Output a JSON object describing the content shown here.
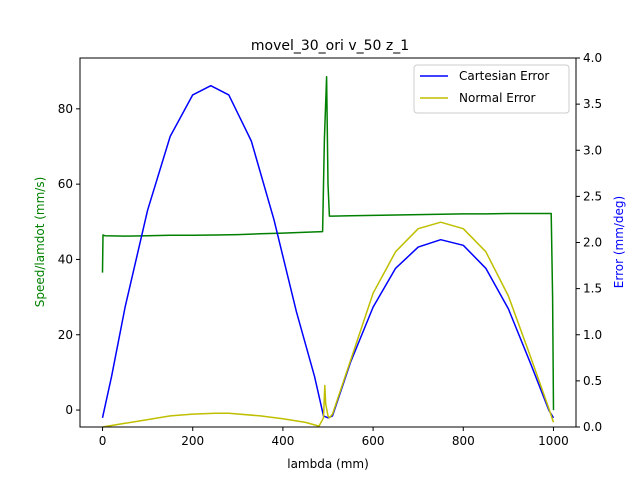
{
  "chart_data": {
    "type": "line",
    "title": "movel_30_ori v_50 z_1",
    "xlabel": "lambda (mm)",
    "ylabel_left": "Speed/lamdot (mm/s)",
    "ylabel_right": "Error (mm/deg)",
    "xlim": [
      -50,
      1050
    ],
    "ylim_left": [
      -4.5,
      93.5
    ],
    "ylim_right": [
      0.0,
      4.0
    ],
    "x_ticks": [
      0,
      200,
      400,
      600,
      800,
      1000
    ],
    "y_left_ticks": [
      0,
      20,
      40,
      60,
      80
    ],
    "y_right_ticks": [
      0.0,
      0.5,
      1.0,
      1.5,
      2.0,
      2.5,
      3.0,
      3.5,
      4.0
    ],
    "x_tick_labels": [
      "0",
      "200",
      "400",
      "600",
      "800",
      "1000"
    ],
    "y_left_tick_labels": [
      "0",
      "20",
      "40",
      "60",
      "80"
    ],
    "y_right_tick_labels": [
      "0.0",
      "0.5",
      "1.0",
      "1.5",
      "2.0",
      "2.5",
      "3.0",
      "3.5",
      "4.0"
    ],
    "grid": false,
    "legend_position": "top-right",
    "colors": {
      "speed": "#008000",
      "cartesian": "#0000ff",
      "normal": "#bfbf00"
    },
    "series": [
      {
        "name": "Speed",
        "axis": "left",
        "x": [
          0,
          1,
          5,
          50,
          100,
          150,
          200,
          250,
          300,
          350,
          400,
          450,
          488,
          492,
          497,
          500,
          503,
          510,
          550,
          600,
          650,
          700,
          750,
          800,
          850,
          900,
          950,
          995,
          998,
          1000
        ],
        "y": [
          36.5,
          46.5,
          46.3,
          46.2,
          46.3,
          46.4,
          46.4,
          46.5,
          46.6,
          46.8,
          47.0,
          47.2,
          47.4,
          72.0,
          88.5,
          60.0,
          51.5,
          51.5,
          51.6,
          51.7,
          51.8,
          51.9,
          52.0,
          52.1,
          52.1,
          52.2,
          52.2,
          52.2,
          30.0,
          0.0
        ]
      },
      {
        "name": "Cartesian Error",
        "axis": "right",
        "x": [
          0,
          20,
          50,
          100,
          150,
          200,
          240,
          280,
          330,
          380,
          430,
          470,
          490,
          500,
          510,
          550,
          600,
          650,
          700,
          750,
          800,
          850,
          900,
          950,
          990,
          1000
        ],
        "y": [
          0.1,
          0.55,
          1.3,
          2.35,
          3.15,
          3.6,
          3.7,
          3.6,
          3.1,
          2.25,
          1.25,
          0.55,
          0.12,
          0.1,
          0.12,
          0.7,
          1.3,
          1.72,
          1.95,
          2.03,
          1.97,
          1.72,
          1.28,
          0.68,
          0.18,
          0.1
        ]
      },
      {
        "name": "Normal Error",
        "axis": "right",
        "x": [
          0,
          50,
          100,
          150,
          200,
          250,
          280,
          350,
          400,
          450,
          480,
          490,
          493,
          495,
          500,
          503,
          510,
          550,
          600,
          650,
          700,
          750,
          800,
          850,
          900,
          950,
          990,
          1000
        ],
        "y": [
          0.0,
          0.04,
          0.08,
          0.12,
          0.14,
          0.15,
          0.15,
          0.12,
          0.09,
          0.05,
          0.01,
          0.1,
          0.45,
          0.25,
          0.12,
          0.1,
          0.14,
          0.72,
          1.45,
          1.9,
          2.15,
          2.22,
          2.15,
          1.9,
          1.42,
          0.75,
          0.2,
          0.05
        ]
      }
    ],
    "legend": [
      "Cartesian Error",
      "Normal Error"
    ]
  }
}
